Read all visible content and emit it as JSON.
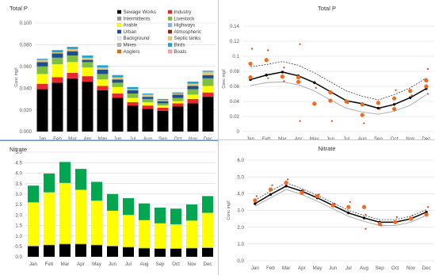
{
  "months": [
    "Jan",
    "Feb",
    "Mar",
    "Apr",
    "May",
    "Jun",
    "Jul",
    "Aug",
    "Sep",
    "Oct",
    "Nov",
    "Dec"
  ],
  "chart_data": [
    {
      "id": "totalp-stacked",
      "type": "bar",
      "stacked": true,
      "title": "Total P",
      "ylabel": "Conc mg/l",
      "ylim": [
        0,
        0.1
      ],
      "yticks": [
        "0.000",
        "0.020",
        "0.040",
        "0.060",
        "0.080",
        "0.100"
      ],
      "categories": [
        "Jan",
        "Feb",
        "Mar",
        "Apr",
        "May",
        "Jun",
        "Jul",
        "Aug",
        "Sep",
        "Oct",
        "Nov",
        "Dec"
      ],
      "legend_position": "top-right",
      "legend": [
        {
          "name": "Sewage Works",
          "color": "#000000"
        },
        {
          "name": "Industry",
          "color": "#e8262b"
        },
        {
          "name": "Intermittents",
          "color": "#969696"
        },
        {
          "name": "Livestock",
          "color": "#7fbf3f"
        },
        {
          "name": "Arable",
          "color": "#ffff00"
        },
        {
          "name": "Highways",
          "color": "#8fb0d9"
        },
        {
          "name": "Urban",
          "color": "#1f4e8c"
        },
        {
          "name": "Atmospheric",
          "color": "#7a2c10"
        },
        {
          "name": "Background",
          "color": "#dfe9f5"
        },
        {
          "name": "Septic tanks",
          "color": "#e2c77a"
        },
        {
          "name": "Mines",
          "color": "#b3b3b3"
        },
        {
          "name": "Birds",
          "color": "#1fa2d6"
        },
        {
          "name": "Anglers",
          "color": "#d36b13"
        },
        {
          "name": "Boats",
          "color": "#f6a4a4"
        }
      ],
      "series": [
        {
          "name": "Sewage Works",
          "color": "#000000",
          "values": [
            0.039,
            0.045,
            0.049,
            0.046,
            0.038,
            0.031,
            0.024,
            0.021,
            0.019,
            0.023,
            0.026,
            0.032
          ]
        },
        {
          "name": "Industry",
          "color": "#e8262b",
          "values": [
            0.005,
            0.005,
            0.005,
            0.005,
            0.004,
            0.004,
            0.003,
            0.003,
            0.003,
            0.003,
            0.004,
            0.004
          ]
        },
        {
          "name": "Arable",
          "color": "#ffff00",
          "values": [
            0.009,
            0.012,
            0.01,
            0.008,
            0.006,
            0.006,
            0.004,
            0.003,
            0.002,
            0.002,
            0.004,
            0.006
          ]
        },
        {
          "name": "Livestock",
          "color": "#7fbf3f",
          "values": [
            0.007,
            0.006,
            0.006,
            0.005,
            0.005,
            0.004,
            0.004,
            0.003,
            0.002,
            0.003,
            0.005,
            0.007
          ]
        },
        {
          "name": "Urban",
          "color": "#1f4e8c",
          "values": [
            0.004,
            0.004,
            0.004,
            0.002,
            0.004,
            0.003,
            0.003,
            0.002,
            0.002,
            0.003,
            0.003,
            0.003
          ]
        },
        {
          "name": "Septic tanks",
          "color": "#e2c77a",
          "values": [
            0.002,
            0.001,
            0.002,
            0.002,
            0.002,
            0.002,
            0.001,
            0.002,
            0.001,
            0.001,
            0.002,
            0.003
          ]
        },
        {
          "name": "Birds",
          "color": "#1fa2d6",
          "values": [
            0.001,
            0.002,
            0.002,
            0.002,
            0.002,
            0.002,
            0.002,
            0.001,
            0.001,
            0.001,
            0.002,
            0.001
          ]
        }
      ]
    },
    {
      "id": "totalp-line",
      "type": "line",
      "title": "Total P",
      "ylabel": "Conc mg/l",
      "ylim": [
        0,
        0.14
      ],
      "yticks": [
        "0",
        "0.02",
        "0.04",
        "0.06",
        "0.08",
        "0.1",
        "0.12",
        "0.14"
      ],
      "categories": [
        "Jan",
        "Feb",
        "Mar",
        "Apr",
        "May",
        "Jun",
        "Jul",
        "Aug",
        "Sep",
        "Oct",
        "Nov",
        "Dec"
      ],
      "mean": [
        0.069,
        0.075,
        0.079,
        0.074,
        0.065,
        0.053,
        0.041,
        0.037,
        0.031,
        0.036,
        0.045,
        0.057
      ],
      "upper": [
        0.086,
        0.089,
        0.093,
        0.088,
        0.078,
        0.066,
        0.054,
        0.047,
        0.042,
        0.049,
        0.058,
        0.071
      ],
      "lower": [
        0.061,
        0.065,
        0.066,
        0.062,
        0.054,
        0.042,
        0.031,
        0.026,
        0.023,
        0.027,
        0.035,
        0.049
      ],
      "observations": [
        {
          "x": "Jan",
          "y": 0.072,
          "size": "large"
        },
        {
          "x": "Jan",
          "y": 0.09,
          "size": "large"
        },
        {
          "x": "Jan",
          "y": 0.11,
          "size": "small"
        },
        {
          "x": "Feb",
          "y": 0.095,
          "size": "large"
        },
        {
          "x": "Feb",
          "y": 0.071,
          "size": "small"
        },
        {
          "x": "Feb",
          "y": 0.108,
          "size": "small"
        },
        {
          "x": "Mar",
          "y": 0.073,
          "size": "large"
        },
        {
          "x": "Mar",
          "y": 0.067,
          "size": "small"
        },
        {
          "x": "Mar",
          "y": 0.085,
          "size": "small"
        },
        {
          "x": "Apr",
          "y": 0.072,
          "size": "large"
        },
        {
          "x": "Apr",
          "y": 0.066,
          "size": "large"
        },
        {
          "x": "Apr",
          "y": 0.116,
          "size": "small"
        },
        {
          "x": "Apr",
          "y": 0.014,
          "size": "small"
        },
        {
          "x": "May",
          "y": 0.037,
          "size": "large"
        },
        {
          "x": "May",
          "y": 0.058,
          "size": "small"
        },
        {
          "x": "Jun",
          "y": 0.052,
          "size": "large"
        },
        {
          "x": "Jun",
          "y": 0.041,
          "size": "large"
        },
        {
          "x": "Jun",
          "y": 0.014,
          "size": "small"
        },
        {
          "x": "Jul",
          "y": 0.04,
          "size": "large"
        },
        {
          "x": "Jul",
          "y": 0.038,
          "size": "small"
        },
        {
          "x": "Aug",
          "y": 0.036,
          "size": "large"
        },
        {
          "x": "Aug",
          "y": 0.022,
          "size": "large"
        },
        {
          "x": "Aug",
          "y": 0.011,
          "size": "small"
        },
        {
          "x": "Sep",
          "y": 0.038,
          "size": "large"
        },
        {
          "x": "Sep",
          "y": 0.03,
          "size": "small"
        },
        {
          "x": "Oct",
          "y": 0.044,
          "size": "large"
        },
        {
          "x": "Oct",
          "y": 0.03,
          "size": "large"
        },
        {
          "x": "Oct",
          "y": 0.055,
          "size": "small"
        },
        {
          "x": "Nov",
          "y": 0.054,
          "size": "large"
        },
        {
          "x": "Nov",
          "y": 0.048,
          "size": "small"
        },
        {
          "x": "Dec",
          "y": 0.068,
          "size": "large"
        },
        {
          "x": "Dec",
          "y": 0.06,
          "size": "large"
        },
        {
          "x": "Dec",
          "y": 0.083,
          "size": "small"
        },
        {
          "x": "Dec",
          "y": 0.05,
          "size": "small"
        }
      ]
    },
    {
      "id": "nitrate-stacked",
      "type": "bar",
      "stacked": true,
      "title": "Nitrate",
      "ylabel": "",
      "ylim": [
        0,
        5
      ],
      "yticks": [
        "0.0",
        "0.5",
        "1.0",
        "1.5",
        "2.0",
        "2.5",
        "3.0",
        "3.5",
        "4.0",
        "4.5",
        "5.0"
      ],
      "categories": [
        "Jan",
        "Feb",
        "Mar",
        "Apr",
        "May",
        "Jun",
        "Jul",
        "Aug",
        "Sep",
        "Oct",
        "Nov",
        "Dec"
      ],
      "series": [
        {
          "name": "Sewage Works",
          "color": "#000000",
          "values": [
            0.5,
            0.55,
            0.6,
            0.6,
            0.55,
            0.5,
            0.45,
            0.4,
            0.38,
            0.38,
            0.4,
            0.42
          ]
        },
        {
          "name": "Intermittents",
          "color": "#969696",
          "values": [
            0.03,
            0.03,
            0.03,
            0.03,
            0.03,
            0.03,
            0.03,
            0.03,
            0.03,
            0.03,
            0.03,
            0.03
          ]
        },
        {
          "name": "Arable",
          "color": "#ffff00",
          "values": [
            2.07,
            2.5,
            2.9,
            2.57,
            2.1,
            1.67,
            1.52,
            1.32,
            1.19,
            1.14,
            1.3,
            1.65
          ]
        },
        {
          "name": "Livestock",
          "color": "#00a650",
          "values": [
            0.8,
            0.9,
            1.0,
            1.0,
            0.9,
            0.8,
            0.8,
            0.8,
            0.75,
            0.75,
            0.77,
            0.8
          ]
        }
      ]
    },
    {
      "id": "nitrate-line",
      "type": "line",
      "title": "Nitrate",
      "ylabel": "Conc mg/l",
      "ylim": [
        0,
        6
      ],
      "yticks": [
        "0.0",
        "1.0",
        "2.0",
        "3.0",
        "4.0",
        "5.0",
        "6.0"
      ],
      "categories": [
        "Jan",
        "Feb",
        "Mar",
        "Apr",
        "May",
        "Jun",
        "Jul",
        "Aug",
        "Sep",
        "Oct",
        "Nov",
        "Dec"
      ],
      "mean": [
        3.4,
        3.95,
        4.45,
        4.15,
        3.75,
        3.3,
        2.85,
        2.55,
        2.3,
        2.3,
        2.5,
        2.9
      ],
      "upper": [
        3.6,
        4.15,
        4.65,
        4.3,
        3.9,
        3.45,
        3.0,
        2.7,
        2.45,
        2.45,
        2.65,
        3.05
      ],
      "lower": [
        3.25,
        3.75,
        4.25,
        3.95,
        3.55,
        3.1,
        2.65,
        2.35,
        2.1,
        2.1,
        2.3,
        2.7
      ],
      "observations": [
        {
          "x": "Jan",
          "y": 3.6,
          "size": "large"
        },
        {
          "x": "Jan",
          "y": 3.85,
          "size": "small"
        },
        {
          "x": "Feb",
          "y": 4.25,
          "size": "large"
        },
        {
          "x": "Feb",
          "y": 4.5,
          "size": "small"
        },
        {
          "x": "Mar",
          "y": 4.65,
          "size": "large"
        },
        {
          "x": "Mar",
          "y": 4.85,
          "size": "small"
        },
        {
          "x": "Apr",
          "y": 4.05,
          "size": "large"
        },
        {
          "x": "Apr",
          "y": 4.2,
          "size": "small"
        },
        {
          "x": "May",
          "y": 3.85,
          "size": "large"
        },
        {
          "x": "May",
          "y": 3.95,
          "size": "small"
        },
        {
          "x": "Jun",
          "y": 3.3,
          "size": "large"
        },
        {
          "x": "Jun",
          "y": 3.4,
          "size": "small"
        },
        {
          "x": "Jul",
          "y": 3.2,
          "size": "large"
        },
        {
          "x": "Jul",
          "y": 3.5,
          "size": "small"
        },
        {
          "x": "Aug",
          "y": 3.2,
          "size": "large"
        },
        {
          "x": "Aug",
          "y": 2.75,
          "size": "small"
        },
        {
          "x": "Aug",
          "y": 1.9,
          "size": "small"
        },
        {
          "x": "Sep",
          "y": 2.2,
          "size": "large"
        },
        {
          "x": "Sep",
          "y": 2.1,
          "size": "small"
        },
        {
          "x": "Oct",
          "y": 2.3,
          "size": "large"
        },
        {
          "x": "Oct",
          "y": 2.6,
          "size": "small"
        },
        {
          "x": "Nov",
          "y": 2.5,
          "size": "large"
        },
        {
          "x": "Nov",
          "y": 2.7,
          "size": "small"
        },
        {
          "x": "Dec",
          "y": 2.75,
          "size": "large"
        },
        {
          "x": "Dec",
          "y": 3.2,
          "size": "small"
        }
      ]
    }
  ]
}
